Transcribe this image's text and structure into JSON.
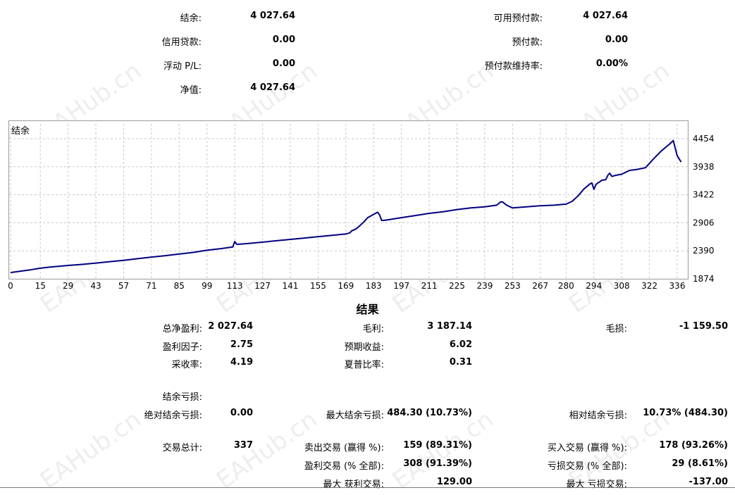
{
  "summary": {
    "balance_label": "结余:",
    "balance_value": "4 027.64",
    "credit_label": "信用贷款:",
    "credit_value": "0.00",
    "floating_label": "浮动 P/L:",
    "floating_value": "0.00",
    "equity_label": "净值:",
    "equity_value": "4 027.64",
    "free_margin_label": "可用预付款:",
    "free_margin_value": "4 027.64",
    "margin_label": "预付款:",
    "margin_value": "0.00",
    "margin_level_label": "预付款维持率:",
    "margin_level_value": "0.00%"
  },
  "watermark": "EAHub.cn",
  "colors": {
    "line": "#000080",
    "grid": "#c8c8c8",
    "border": "#9a9a9a"
  },
  "chart_data": {
    "type": "line",
    "title": "结余",
    "xlabel": "",
    "ylabel": "",
    "x_ticks": [
      "0",
      "15",
      "29",
      "43",
      "57",
      "71",
      "85",
      "99",
      "113",
      "127",
      "141",
      "155",
      "169",
      "183",
      "197",
      "211",
      "225",
      "239",
      "253",
      "267",
      "280",
      "294",
      "308",
      "322",
      "336"
    ],
    "y_ticks": [
      "4454",
      "3938",
      "3422",
      "2906",
      "2390",
      "1874"
    ],
    "xlim": [
      0,
      338
    ],
    "ylim": [
      1874,
      4500
    ],
    "series": [
      {
        "x": [
          0,
          5,
          10,
          15,
          20,
          29,
          36,
          43,
          50,
          57,
          64,
          71,
          78,
          85,
          92,
          99,
          106,
          112,
          113,
          114,
          115,
          120,
          127,
          134,
          141,
          148,
          155,
          162,
          169,
          171,
          172,
          174,
          176,
          178,
          180,
          183,
          185,
          186,
          187,
          188,
          190,
          197,
          204,
          211,
          218,
          225,
          232,
          239,
          245,
          246,
          247,
          248,
          250,
          253,
          260,
          267,
          274,
          280,
          283,
          286,
          289,
          292,
          293,
          294,
          295,
          296,
          297,
          298,
          300,
          301,
          302,
          303,
          304,
          305,
          308,
          312,
          316,
          320,
          324,
          328,
          332,
          334,
          336,
          338
        ],
        "y": [
          1990,
          2015,
          2040,
          2070,
          2090,
          2120,
          2140,
          2165,
          2190,
          2215,
          2245,
          2275,
          2300,
          2330,
          2360,
          2400,
          2430,
          2460,
          2560,
          2510,
          2510,
          2525,
          2550,
          2575,
          2600,
          2625,
          2650,
          2675,
          2700,
          2720,
          2760,
          2790,
          2850,
          2920,
          3000,
          3060,
          3100,
          3050,
          2950,
          2950,
          2960,
          3000,
          3040,
          3080,
          3110,
          3150,
          3180,
          3200,
          3230,
          3260,
          3290,
          3290,
          3230,
          3180,
          3200,
          3220,
          3230,
          3250,
          3300,
          3400,
          3530,
          3620,
          3640,
          3520,
          3610,
          3640,
          3660,
          3690,
          3700,
          3780,
          3820,
          3760,
          3770,
          3780,
          3800,
          3870,
          3890,
          3920,
          4080,
          4230,
          4350,
          4420,
          4140,
          4025
        ]
      }
    ]
  },
  "results": {
    "title": "结果",
    "total_net_profit_label": "总净盈利:",
    "total_net_profit_value": "2 027.64",
    "gross_profit_label": "毛利:",
    "gross_profit_value": "3 187.14",
    "gross_loss_label": "毛损:",
    "gross_loss_value": "-1 159.50",
    "profit_factor_label": "盈利因子:",
    "profit_factor_value": "2.75",
    "expected_payoff_label": "预期收益:",
    "expected_payoff_value": "6.02",
    "recovery_factor_label": "采收率:",
    "recovery_factor_value": "4.19",
    "sharpe_label": "夏普比率:",
    "sharpe_value": "0.31",
    "balance_drawdown_label": "结余亏损:",
    "abs_drawdown_label": "绝对结余亏损:",
    "abs_drawdown_value": "0.00",
    "max_drawdown_label": "最大结余亏损:",
    "max_drawdown_value": "484.30 (10.73%)",
    "rel_drawdown_label": "相对结余亏损:",
    "rel_drawdown_value": "10.73% (484.30)",
    "total_trades_label": "交易总计:",
    "total_trades_value": "337",
    "short_trades_label": "卖出交易 (赢得 %):",
    "short_trades_value": "159 (89.31%)",
    "long_trades_label": "买入交易 (赢得 %):",
    "long_trades_value": "178 (93.26%)",
    "profit_trades_label": "盈利交易 (% 全部):",
    "profit_trades_value": "308 (91.39%)",
    "loss_trades_label": "亏损交易 (% 全部):",
    "loss_trades_value": "29 (8.61%)",
    "largest_profit_label": "最大 获利交易:",
    "largest_profit_value": "129.00",
    "largest_loss_label": "最大 亏损交易:",
    "largest_loss_value": "-137.00"
  }
}
